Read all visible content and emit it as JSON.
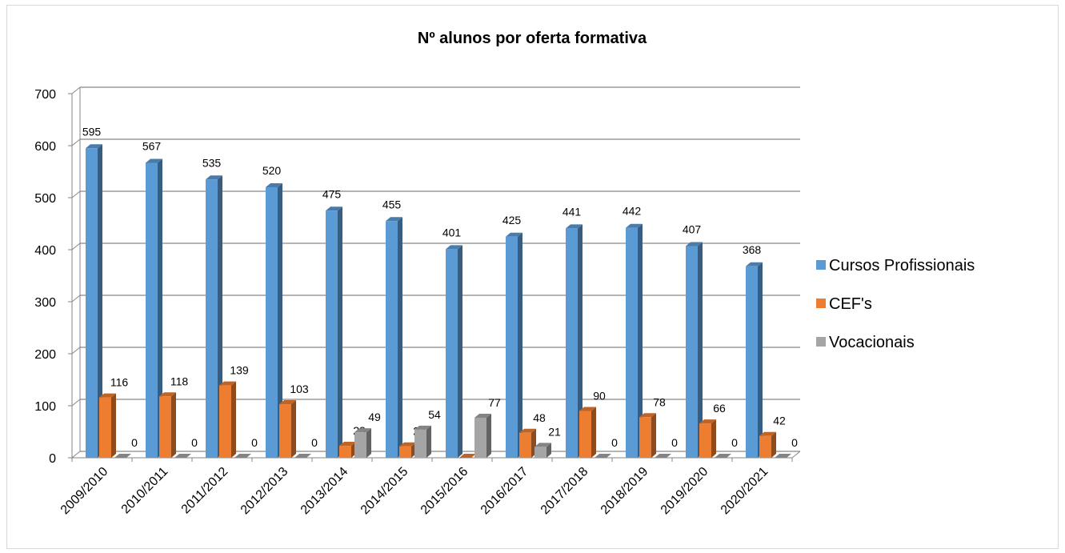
{
  "chart_data": {
    "type": "bar3d",
    "title": "Nº alunos por oferta formativa",
    "categories": [
      "2009/2010",
      "2010/2011",
      "2011/2012",
      "2012/2013",
      "2013/2014",
      "2014/2015",
      "2015/2016",
      "2016/2017",
      "2017/2018",
      "2018/2019",
      "2019/2020",
      "2020/2021"
    ],
    "series": [
      {
        "name": "Cursos Profissionais",
        "color": "#5b9bd5",
        "values": [
          595,
          567,
          535,
          520,
          475,
          455,
          401,
          425,
          441,
          442,
          407,
          368
        ]
      },
      {
        "name": "CEF's",
        "color": "#ed7d31",
        "values": [
          116,
          118,
          139,
          103,
          23,
          22,
          0,
          48,
          90,
          78,
          66,
          42
        ]
      },
      {
        "name": "Vocacionais",
        "color": "#a5a5a5",
        "values": [
          0,
          0,
          0,
          0,
          49,
          54,
          77,
          21,
          0,
          0,
          0,
          0
        ]
      }
    ],
    "ylim": [
      0,
      700
    ],
    "yticks": [
      0,
      100,
      200,
      300,
      400,
      500,
      600,
      700
    ],
    "grid": true,
    "legend": "right"
  }
}
